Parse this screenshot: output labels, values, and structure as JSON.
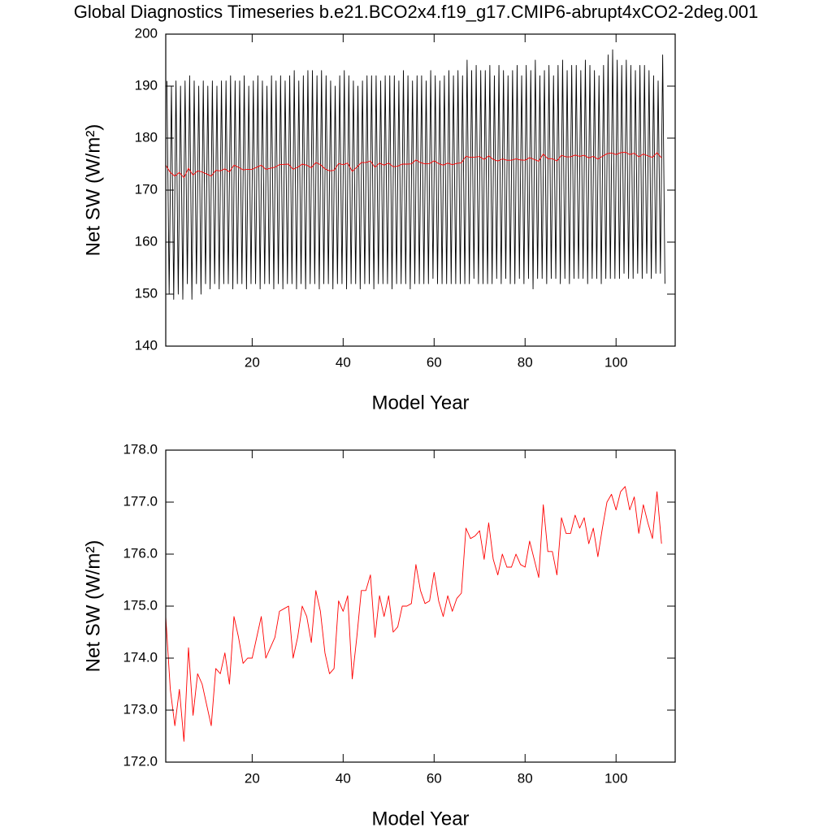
{
  "chart_data": [
    {
      "type": "line",
      "title": "Global Diagnostics Timeseries b.e21.BCO2x4.f19_g17.CMIP6-abrupt4xCO2-2deg.001",
      "xlabel": "Model Year",
      "ylabel": "Net SW (W/m²)",
      "xlim": [
        1,
        113
      ],
      "xticks": [
        20,
        40,
        60,
        80,
        100
      ],
      "ylim": [
        140,
        200
      ],
      "yticks": [
        140,
        150,
        160,
        170,
        180,
        190,
        200
      ],
      "series": [
        {
          "color": "#000000",
          "x": [
            1.25,
            1.75,
            2.25,
            2.75,
            3.25,
            3.75,
            4.25,
            4.75,
            5.25,
            5.75,
            6.25,
            6.75,
            7.25,
            7.75,
            8.25,
            8.75,
            9.25,
            9.75,
            10.25,
            10.75,
            11.25,
            11.75,
            12.25,
            12.75,
            13.25,
            13.75,
            14.25,
            14.75,
            15.25,
            15.75,
            16.25,
            16.75,
            17.25,
            17.75,
            18.25,
            18.75,
            19.25,
            19.75,
            20.25,
            20.75,
            21.25,
            21.75,
            22.25,
            22.75,
            23.25,
            23.75,
            24.25,
            24.75,
            25.25,
            25.75,
            26.25,
            26.75,
            27.25,
            27.75,
            28.25,
            28.75,
            29.25,
            29.75,
            30.25,
            30.75,
            31.25,
            31.75,
            32.25,
            32.75,
            33.25,
            33.75,
            34.25,
            34.75,
            35.25,
            35.75,
            36.25,
            36.75,
            37.25,
            37.75,
            38.25,
            38.75,
            39.25,
            39.75,
            40.25,
            40.75,
            41.25,
            41.75,
            42.25,
            42.75,
            43.25,
            43.75,
            44.25,
            44.75,
            45.25,
            45.75,
            46.25,
            46.75,
            47.25,
            47.75,
            48.25,
            48.75,
            49.25,
            49.75,
            50.25,
            50.75,
            51.25,
            51.75,
            52.25,
            52.75,
            53.25,
            53.75,
            54.25,
            54.75,
            55.25,
            55.75,
            56.25,
            56.75,
            57.25,
            57.75,
            58.25,
            58.75,
            59.25,
            59.75,
            60.25,
            60.75,
            61.25,
            61.75,
            62.25,
            62.75,
            63.25,
            63.75,
            64.25,
            64.75,
            65.25,
            65.75,
            66.25,
            66.75,
            67.25,
            67.75,
            68.25,
            68.75,
            69.25,
            69.75,
            70.25,
            70.75,
            71.25,
            71.75,
            72.25,
            72.75,
            73.25,
            73.75,
            74.25,
            74.75,
            75.25,
            75.75,
            76.25,
            76.75,
            77.25,
            77.75,
            78.25,
            78.75,
            79.25,
            79.75,
            80.25,
            80.75,
            81.25,
            81.75,
            82.25,
            82.75,
            83.25,
            83.75,
            84.25,
            84.75,
            85.25,
            85.75,
            86.25,
            86.75,
            87.25,
            87.75,
            88.25,
            88.75,
            89.25,
            89.75,
            90.25,
            90.75,
            91.25,
            91.75,
            92.25,
            92.75,
            93.25,
            93.75,
            94.25,
            94.75,
            95.25,
            95.75,
            96.25,
            96.75,
            97.25,
            97.75,
            98.25,
            98.75,
            99.25,
            99.75,
            100.25,
            100.75,
            101.25,
            101.75,
            102.25,
            102.75,
            103.25,
            103.75,
            104.25,
            104.75,
            105.25,
            105.75,
            106.25,
            106.75,
            107.25,
            107.75,
            108.25,
            108.75,
            109.25,
            109.75,
            110.25,
            110.75
          ],
          "values": [
            191,
            150,
            190,
            149,
            191,
            150,
            190,
            149,
            191,
            152,
            192,
            149,
            191,
            152,
            190,
            150,
            191,
            152,
            190,
            151,
            191,
            152,
            190,
            151,
            191,
            152,
            191,
            152,
            192,
            151,
            191,
            152,
            191,
            152,
            192,
            151,
            190,
            152,
            191,
            152,
            192,
            151,
            191,
            152,
            190,
            152,
            192,
            151,
            191,
            152,
            192,
            151,
            191,
            152,
            192,
            152,
            193,
            151,
            191,
            152,
            192,
            151,
            193,
            152,
            193,
            152,
            192,
            151,
            193,
            152,
            192,
            152,
            191,
            151,
            190,
            152,
            192,
            152,
            193,
            151,
            192,
            152,
            191,
            152,
            190,
            151,
            191,
            152,
            192,
            152,
            192,
            151,
            192,
            152,
            191,
            152,
            192,
            152,
            192,
            151,
            192,
            152,
            191,
            152,
            193,
            152,
            192,
            151,
            191,
            152,
            192,
            152,
            192,
            152,
            191,
            152,
            193,
            153,
            192,
            152,
            191,
            152,
            192,
            152,
            193,
            152,
            192,
            152,
            193,
            152,
            192,
            152,
            195,
            152,
            193,
            153,
            194,
            152,
            193,
            152,
            193,
            152,
            194,
            152,
            192,
            153,
            194,
            152,
            193,
            153,
            192,
            152,
            193,
            152,
            194,
            153,
            192,
            152,
            194,
            153,
            193,
            151,
            195,
            153,
            192,
            153,
            193,
            152,
            194,
            153,
            192,
            153,
            194,
            152,
            195,
            153,
            193,
            152,
            194,
            153,
            194,
            153,
            193,
            153,
            195,
            152,
            194,
            153,
            193,
            153,
            192,
            152,
            194,
            153,
            196,
            153,
            197,
            153,
            195,
            153,
            194,
            154,
            195,
            153,
            194,
            153,
            193,
            154,
            194,
            153,
            194,
            154,
            193,
            153,
            192,
            154,
            191,
            154,
            196,
            152
          ]
        },
        {
          "color": "#ff0000",
          "x": [
            1,
            2,
            3,
            4,
            5,
            6,
            7,
            8,
            9,
            10,
            11,
            12,
            13,
            14,
            15,
            16,
            17,
            18,
            19,
            20,
            21,
            22,
            23,
            24,
            25,
            26,
            27,
            28,
            29,
            30,
            31,
            32,
            33,
            34,
            35,
            36,
            37,
            38,
            39,
            40,
            41,
            42,
            43,
            44,
            45,
            46,
            47,
            48,
            49,
            50,
            51,
            52,
            53,
            54,
            55,
            56,
            57,
            58,
            59,
            60,
            61,
            62,
            63,
            64,
            65,
            66,
            67,
            68,
            69,
            70,
            71,
            72,
            73,
            74,
            75,
            76,
            77,
            78,
            79,
            80,
            81,
            82,
            83,
            84,
            85,
            86,
            87,
            88,
            89,
            90,
            91,
            92,
            93,
            94,
            95,
            96,
            97,
            98,
            99,
            100,
            101,
            102,
            103,
            104,
            105,
            106,
            107,
            108,
            109,
            110
          ],
          "values": [
            174.8,
            173.4,
            172.7,
            173.4,
            172.4,
            174.2,
            172.9,
            173.7,
            173.5,
            173.1,
            172.7,
            173.8,
            173.7,
            174.1,
            173.5,
            174.8,
            174.4,
            173.9,
            174.0,
            174.0,
            174.4,
            174.8,
            174.0,
            174.2,
            174.4,
            174.9,
            174.95,
            175.0,
            174.0,
            174.4,
            175.0,
            174.8,
            174.3,
            175.3,
            174.9,
            174.1,
            173.7,
            173.8,
            175.1,
            174.9,
            175.2,
            173.6,
            174.4,
            175.3,
            175.3,
            175.6,
            174.4,
            175.2,
            174.8,
            175.2,
            174.5,
            174.6,
            175.0,
            175.0,
            175.05,
            175.8,
            175.3,
            175.05,
            175.1,
            175.65,
            175.1,
            174.8,
            175.2,
            174.9,
            175.15,
            175.25,
            176.5,
            176.3,
            176.35,
            176.45,
            175.9,
            176.6,
            175.9,
            175.6,
            176.0,
            175.75,
            175.75,
            176.0,
            175.8,
            175.75,
            176.25,
            175.9,
            175.55,
            176.95,
            176.05,
            176.05,
            175.6,
            176.7,
            176.4,
            176.4,
            176.75,
            176.5,
            176.7,
            176.2,
            176.5,
            175.95,
            176.5,
            177.0,
            177.15,
            176.85,
            177.2,
            177.3,
            176.85,
            177.1,
            176.4,
            176.95,
            176.6,
            176.3,
            177.2,
            176.2
          ]
        }
      ]
    },
    {
      "type": "line",
      "xlabel": "Model Year",
      "ylabel": "Net SW (W/m²)",
      "xlim": [
        1,
        113
      ],
      "xticks": [
        20,
        40,
        60,
        80,
        100
      ],
      "ylim": [
        172,
        178
      ],
      "yticks": [
        {
          "value": 172,
          "label": "172.0"
        },
        {
          "value": 173,
          "label": "173.0"
        },
        {
          "value": 174,
          "label": "174.0"
        },
        {
          "value": 175,
          "label": "175.0"
        },
        {
          "value": 176,
          "label": "176.0"
        },
        {
          "value": 177,
          "label": "177.0"
        },
        {
          "value": 178,
          "label": "178.0"
        }
      ],
      "series": [
        {
          "color": "#ff0000",
          "x": [
            1,
            2,
            3,
            4,
            5,
            6,
            7,
            8,
            9,
            10,
            11,
            12,
            13,
            14,
            15,
            16,
            17,
            18,
            19,
            20,
            21,
            22,
            23,
            24,
            25,
            26,
            27,
            28,
            29,
            30,
            31,
            32,
            33,
            34,
            35,
            36,
            37,
            38,
            39,
            40,
            41,
            42,
            43,
            44,
            45,
            46,
            47,
            48,
            49,
            50,
            51,
            52,
            53,
            54,
            55,
            56,
            57,
            58,
            59,
            60,
            61,
            62,
            63,
            64,
            65,
            66,
            67,
            68,
            69,
            70,
            71,
            72,
            73,
            74,
            75,
            76,
            77,
            78,
            79,
            80,
            81,
            82,
            83,
            84,
            85,
            86,
            87,
            88,
            89,
            90,
            91,
            92,
            93,
            94,
            95,
            96,
            97,
            98,
            99,
            100,
            101,
            102,
            103,
            104,
            105,
            106,
            107,
            108,
            109,
            110
          ],
          "values": [
            174.8,
            173.4,
            172.7,
            173.4,
            172.4,
            174.2,
            172.9,
            173.7,
            173.5,
            173.1,
            172.7,
            173.8,
            173.7,
            174.1,
            173.5,
            174.8,
            174.4,
            173.9,
            174.0,
            174.0,
            174.4,
            174.8,
            174.0,
            174.2,
            174.4,
            174.9,
            174.95,
            175.0,
            174.0,
            174.4,
            175.0,
            174.8,
            174.3,
            175.3,
            174.9,
            174.1,
            173.7,
            173.8,
            175.1,
            174.9,
            175.2,
            173.6,
            174.4,
            175.3,
            175.3,
            175.6,
            174.4,
            175.2,
            174.8,
            175.2,
            174.5,
            174.6,
            175.0,
            175.0,
            175.05,
            175.8,
            175.3,
            175.05,
            175.1,
            175.65,
            175.1,
            174.8,
            175.2,
            174.9,
            175.15,
            175.25,
            176.5,
            176.3,
            176.35,
            176.45,
            175.9,
            176.6,
            175.9,
            175.6,
            176.0,
            175.75,
            175.75,
            176.0,
            175.8,
            175.75,
            176.25,
            175.9,
            175.55,
            176.95,
            176.05,
            176.05,
            175.6,
            176.7,
            176.4,
            176.4,
            176.75,
            176.5,
            176.7,
            176.2,
            176.5,
            175.95,
            176.5,
            177.0,
            177.15,
            176.85,
            177.2,
            177.3,
            176.85,
            177.1,
            176.4,
            176.95,
            176.6,
            176.3,
            177.2,
            176.2
          ]
        }
      ]
    }
  ]
}
